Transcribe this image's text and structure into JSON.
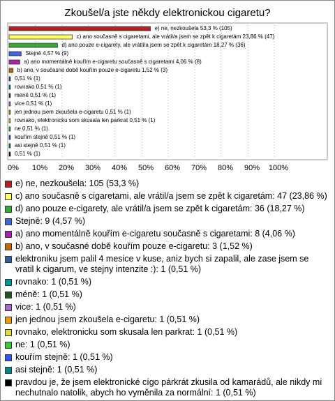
{
  "chart_data": {
    "type": "bar",
    "orientation": "horizontal",
    "title": "Zkoušel/a jste někdy elektronickou cigaretu?",
    "categories": [
      "e) ne, nezkoušela: 105 (53,3 %)",
      "c) ano současně s cigaretami, ale vrátil/a jsem se zpět k cigaretám: 47 (23,86 %)",
      "d) ano pouze e-cigarety, ale vrátil/a jsem se zpět k cigaretám: 36 (18,27 %)",
      "Stejně: 9 (4,57 %)",
      "a) ano momentálně kouřím e-cigaretu současně s cigaretami: 8 (4,06 %)",
      "b) ano, v současné době kouřím pouze e-cigaretu: 3 (1,52 %)",
      "elektroniku jsem palil 4 mesice v kuse, aniz bych si zapalil, ale zase jsem se vratil k cigarum, ve stejny intenzite :): 1 (0,51 %)",
      "rovnako: 1 (0,51 %)",
      "méně: 1 (0,51 %)",
      "vice: 1 (0,51 %)",
      "jen jednou jsem zkoušela e-cigaretu: 1 (0,51 %)",
      "rovnako, elektronicku som skusala len parkrat: 1 (0,51 %)",
      "ne: 1 (0,51 %)",
      "kouřím stejně: 1 (0,51 %)",
      "asi stejně: 1 (0,51 %)",
      "pravdou je, že jsem elektronické cígo párkrát zkusila od kamarádů, ale nikdy mi nechutnalo natolik, abych ho vyměnila za normální: 1 (0,51 %)"
    ],
    "values": [
      53.3,
      23.86,
      18.27,
      4.57,
      4.06,
      1.52,
      0.51,
      0.51,
      0.51,
      0.51,
      0.51,
      0.51,
      0.51,
      0.51,
      0.51,
      0.51
    ],
    "value_labels": [
      "e) ne, nezkoušela 53,3 % (105)",
      "c) ano současně s cigaretami, ale vrátil/a jsem se zpět k cigaretám 23,86 % (47)",
      "d) ano pouze e-cigarety, ale vrátil/a jsem se zpět k cigaretám 18,27 % (36)",
      "Stejně 4,57 % (9)",
      "a) ano momentálně kouřím e-cigaretu současně s cigaretami 4,06 % (8)",
      "b) ano, v současné době kouřím pouze e-cigaretu 1,52 % (3)",
      "0,51 % (1)",
      "rovnako 0,51 % (1)",
      "méně 0,51 % (1)",
      "vice 0,51 % (1)",
      "jen jednou jsem zkoušela e-cigaretu 0,51 % (1)",
      "rovnako, elektronicku som skusala len parkrat 0,51 % (1)",
      "ne 0,51 % (1)",
      "kouřím stejně 0,51 % (1)",
      "asi stejně 0,51 % (1)",
      "0,51 % (1)"
    ],
    "colors": [
      "#b22222",
      "#ffff66",
      "#33aa33",
      "#4466dd",
      "#aa22aa",
      "#cc6600",
      "#2f5f9f",
      "#009999",
      "#225522",
      "#aa66cc",
      "#ee9900",
      "#dddd44",
      "#33cc33",
      "#3355ff",
      "#008888",
      "#000000"
    ],
    "xlim": [
      0,
      100
    ],
    "xticks": [
      {
        "value": 0,
        "label": "0%"
      },
      {
        "value": 10,
        "label": "10%"
      },
      {
        "value": 20,
        "label": "20%"
      },
      {
        "value": 30,
        "label": "30%"
      },
      {
        "value": 40,
        "label": "40%"
      },
      {
        "value": 50,
        "label": "50%"
      },
      {
        "value": 60,
        "label": "60%"
      },
      {
        "value": 70,
        "label": "70%"
      },
      {
        "value": 80,
        "label": "80%"
      },
      {
        "value": 90,
        "label": "90%"
      },
      {
        "value": 100,
        "label": "100%"
      }
    ],
    "grid": true
  }
}
